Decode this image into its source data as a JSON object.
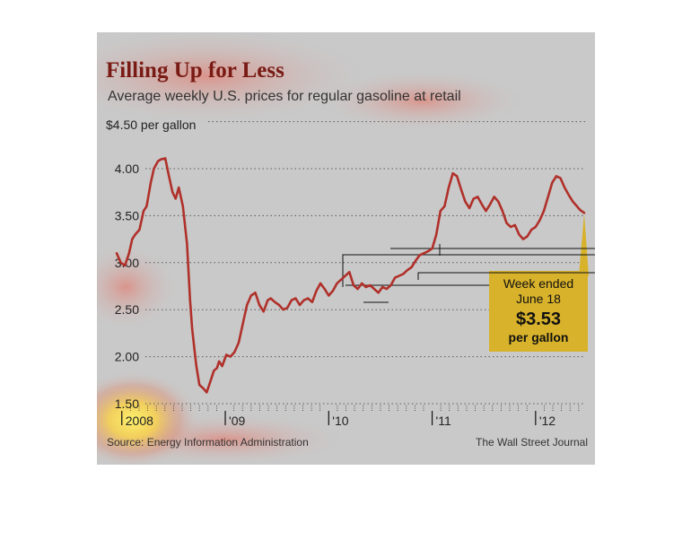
{
  "chart_data": {
    "type": "line",
    "title": "Filling Up for Less",
    "subtitle": "Average weekly U.S. prices for regular gasoline at retail",
    "y_unit_label": "$4.50 per gallon",
    "y_ticks": [
      "4.00",
      "3.50",
      "3.00",
      "2.50",
      "2.00",
      "1.50"
    ],
    "y_tick_values": [
      4.0,
      3.5,
      3.0,
      2.5,
      2.0,
      1.5
    ],
    "ylim": [
      1.5,
      4.5
    ],
    "x_ticks": [
      "2008",
      "'09",
      "'10",
      "'11",
      "'12"
    ],
    "x_tick_values": [
      2008.0,
      2009.0,
      2010.0,
      2011.0,
      2012.0
    ],
    "xlim": [
      2007.95,
      2012.47
    ],
    "grid": true,
    "source": "Source: Energy Information Administration",
    "credit": "The Wall Street Journal",
    "callout": {
      "line1": "Week ended",
      "line2": "June 18",
      "value": "$3.53",
      "unit": "per gallon"
    },
    "colors": {
      "line": "#b0302a",
      "title": "#7a1a14",
      "callout": "#d8b22a",
      "plot_bg": "#c9c9c9"
    },
    "series": [
      {
        "x": [
          2007.95,
          2007.99,
          2008.03,
          2008.07,
          2008.1,
          2008.13,
          2008.17,
          2008.21,
          2008.24,
          2008.28,
          2008.31,
          2008.35,
          2008.38,
          2008.42,
          2008.45,
          2008.49,
          2008.52,
          2008.55,
          2008.59,
          2008.63,
          2008.66,
          2008.68,
          2008.7,
          2008.72,
          2008.75,
          2008.79,
          2008.82,
          2008.86,
          2008.89,
          2008.92,
          2008.94,
          2008.97,
          2009.01,
          2009.05,
          2009.09,
          2009.13,
          2009.17,
          2009.21,
          2009.25,
          2009.29,
          2009.33,
          2009.37,
          2009.41,
          2009.44,
          2009.48,
          2009.52,
          2009.56,
          2009.6,
          2009.64,
          2009.68,
          2009.72,
          2009.76,
          2009.8,
          2009.84,
          2009.88,
          2009.92,
          2009.96,
          2010.0,
          2010.04,
          2010.08,
          2010.12,
          2010.16,
          2010.2,
          2010.24,
          2010.28,
          2010.32,
          2010.36,
          2010.4,
          2010.44,
          2010.48,
          2010.52,
          2010.56,
          2010.6,
          2010.64,
          2010.68,
          2010.72,
          2010.76,
          2010.8,
          2010.84,
          2010.88,
          2010.92,
          2010.96,
          2011.0,
          2011.04,
          2011.08,
          2011.12,
          2011.16,
          2011.2,
          2011.24,
          2011.28,
          2011.32,
          2011.36,
          2011.4,
          2011.44,
          2011.48,
          2011.52,
          2011.56,
          2011.6,
          2011.64,
          2011.68,
          2011.72,
          2011.76,
          2011.8,
          2011.84,
          2011.88,
          2011.92,
          2011.96,
          2012.0,
          2012.04,
          2012.08,
          2012.12,
          2012.16,
          2012.2,
          2012.24,
          2012.28,
          2012.32,
          2012.36,
          2012.4,
          2012.43,
          2012.47
        ],
        "y": [
          3.1,
          3.0,
          2.97,
          3.1,
          3.25,
          3.3,
          3.35,
          3.55,
          3.6,
          3.85,
          4.0,
          4.08,
          4.1,
          4.11,
          3.95,
          3.75,
          3.68,
          3.8,
          3.6,
          3.2,
          2.6,
          2.3,
          2.1,
          1.9,
          1.7,
          1.66,
          1.62,
          1.75,
          1.85,
          1.88,
          1.95,
          1.9,
          2.02,
          2.0,
          2.05,
          2.15,
          2.35,
          2.55,
          2.65,
          2.68,
          2.55,
          2.48,
          2.6,
          2.62,
          2.58,
          2.55,
          2.5,
          2.52,
          2.6,
          2.62,
          2.55,
          2.6,
          2.62,
          2.58,
          2.7,
          2.78,
          2.72,
          2.65,
          2.7,
          2.78,
          2.82,
          2.86,
          2.9,
          2.76,
          2.72,
          2.78,
          2.74,
          2.76,
          2.72,
          2.68,
          2.74,
          2.72,
          2.76,
          2.84,
          2.86,
          2.88,
          2.92,
          2.95,
          3.02,
          3.08,
          3.1,
          3.12,
          3.15,
          3.3,
          3.55,
          3.6,
          3.8,
          3.95,
          3.92,
          3.78,
          3.65,
          3.58,
          3.68,
          3.7,
          3.62,
          3.55,
          3.62,
          3.7,
          3.65,
          3.55,
          3.42,
          3.38,
          3.4,
          3.3,
          3.25,
          3.28,
          3.35,
          3.38,
          3.45,
          3.55,
          3.7,
          3.85,
          3.92,
          3.9,
          3.8,
          3.72,
          3.65,
          3.6,
          3.56,
          3.53
        ]
      }
    ]
  }
}
